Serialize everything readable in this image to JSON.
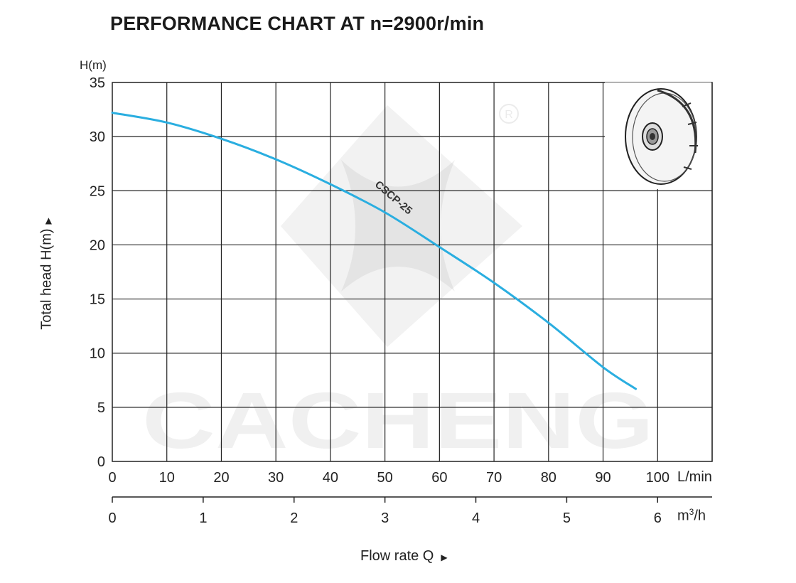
{
  "chart_data": {
    "type": "line",
    "title": "PERFORMANCE CHART AT n=2900r/min",
    "ylabel": "Total  head H(m)",
    "y_unit": "H(m)",
    "xlabel": "Flow rate  Q",
    "x_unit_primary": "L/min",
    "x_unit_secondary": "m",
    "x_unit_secondary_sup": "3",
    "x_unit_secondary_suffix": "/h",
    "xlim": [
      0,
      110
    ],
    "ylim": [
      0,
      35
    ],
    "x_ticks": [
      "0",
      "10",
      "20",
      "30",
      "40",
      "50",
      "60",
      "70",
      "80",
      "90",
      "100"
    ],
    "y_ticks": [
      "0",
      "5",
      "10",
      "15",
      "20",
      "25",
      "30",
      "35"
    ],
    "x2_ticks": [
      "0",
      "1",
      "2",
      "3",
      "4",
      "5",
      "6"
    ],
    "grid": true,
    "series": [
      {
        "name": "CSCP-25",
        "color": "#2aaee0",
        "x": [
          0,
          10,
          20,
          30,
          40,
          50,
          60,
          70,
          80,
          90,
          96
        ],
        "y": [
          32.2,
          31.3,
          29.8,
          27.9,
          25.6,
          23.0,
          19.8,
          16.5,
          12.8,
          8.7,
          6.7
        ]
      }
    ],
    "watermark": "CACHENG"
  }
}
